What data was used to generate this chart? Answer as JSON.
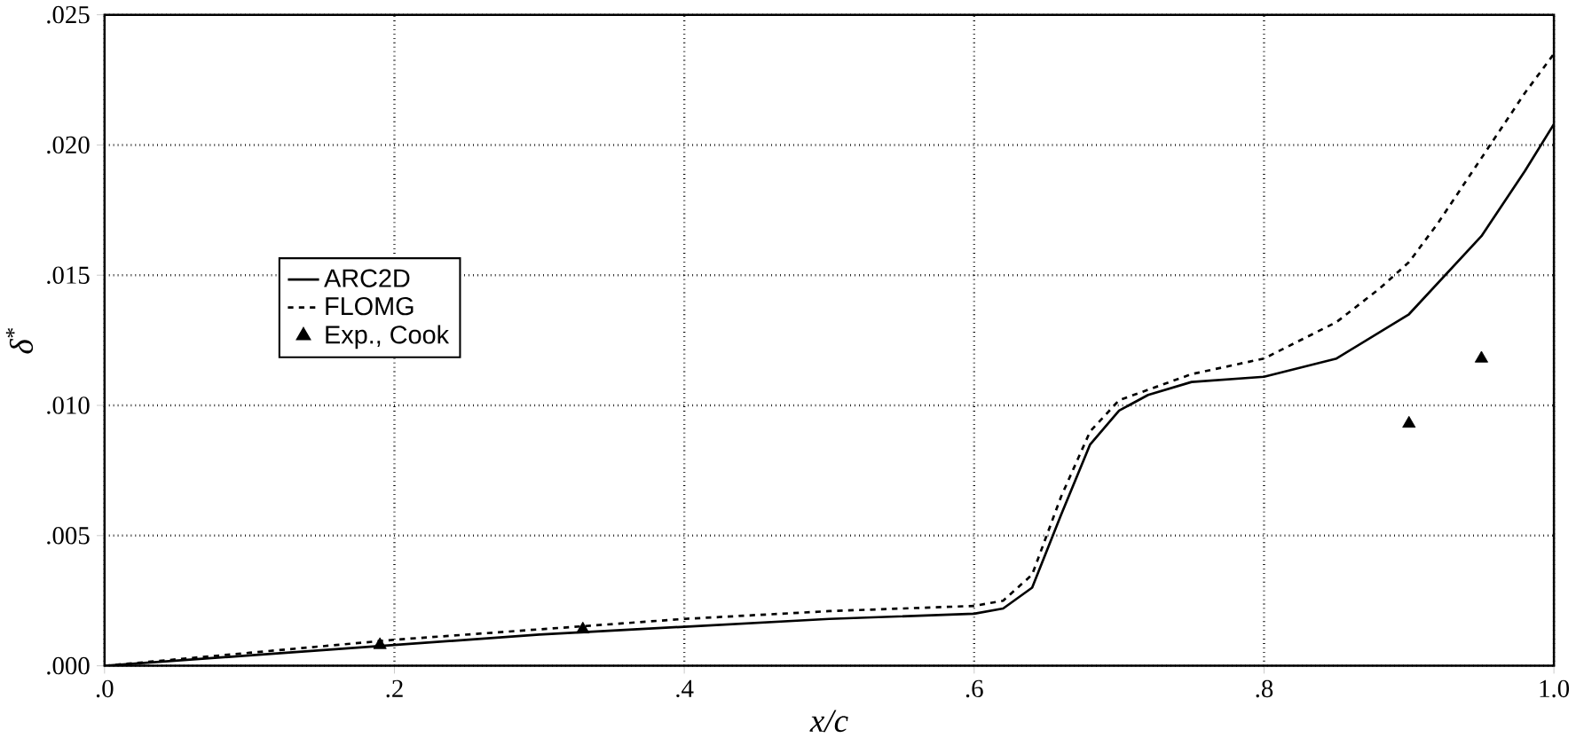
{
  "chart_data": {
    "type": "line",
    "xlabel": "*x/c*",
    "ylabel": "*δ*$^{*}$",
    "xlim": [
      0,
      1
    ],
    "ylim": [
      0,
      0.025
    ],
    "xticks": [
      {
        "value": 0,
        "label": ".0"
      },
      {
        "value": 0.2,
        "label": ".2"
      },
      {
        "value": 0.4,
        "label": ".4"
      },
      {
        "value": 0.6,
        "label": ".6"
      },
      {
        "value": 0.8,
        "label": ".8"
      },
      {
        "value": 1,
        "label": "1.0"
      }
    ],
    "yticks": [
      {
        "value": 0,
        "label": ".000"
      },
      {
        "value": 0.005,
        "label": ".005"
      },
      {
        "value": 0.01,
        "label": ".010"
      },
      {
        "value": 0.015,
        "label": ".015"
      },
      {
        "value": 0.02,
        "label": ".020"
      },
      {
        "value": 0.025,
        "label": ".025"
      }
    ],
    "grid": true,
    "legend": "left",
    "series": [
      {
        "name": "ARC2D",
        "type": "line",
        "line_style": "solid",
        "color": "#000000",
        "x": [
          0,
          0.1,
          0.2,
          0.3,
          0.4,
          0.5,
          0.6,
          0.62,
          0.64,
          0.66,
          0.68,
          0.7,
          0.72,
          0.75,
          0.8,
          0.85,
          0.9,
          0.95,
          0.98,
          1.0
        ],
        "values": [
          0,
          0.0004,
          0.0008,
          0.0012,
          0.0015,
          0.0018,
          0.002,
          0.0022,
          0.003,
          0.0058,
          0.0085,
          0.0098,
          0.0104,
          0.0109,
          0.0111,
          0.0118,
          0.0135,
          0.0165,
          0.019,
          0.0208
        ]
      },
      {
        "name": "FLOMG",
        "type": "line",
        "line_style": "dashed",
        "color": "#000000",
        "x": [
          0,
          0.1,
          0.2,
          0.3,
          0.4,
          0.5,
          0.6,
          0.62,
          0.64,
          0.66,
          0.68,
          0.7,
          0.72,
          0.75,
          0.8,
          0.85,
          0.88,
          0.9,
          0.92,
          0.95,
          0.98,
          1.0
        ],
        "values": [
          0,
          0.0005,
          0.001,
          0.0014,
          0.0018,
          0.0021,
          0.0023,
          0.0025,
          0.0035,
          0.0065,
          0.009,
          0.0102,
          0.0106,
          0.0112,
          0.0118,
          0.0132,
          0.0145,
          0.0155,
          0.017,
          0.0195,
          0.022,
          0.0235
        ]
      },
      {
        "name": "Exp., Cook",
        "type": "scatter",
        "marker": "triangle",
        "color": "#000000",
        "x": [
          0.19,
          0.33,
          0.9,
          0.95
        ],
        "values": [
          0.0008,
          0.0014,
          0.0093,
          0.0118
        ]
      }
    ]
  }
}
